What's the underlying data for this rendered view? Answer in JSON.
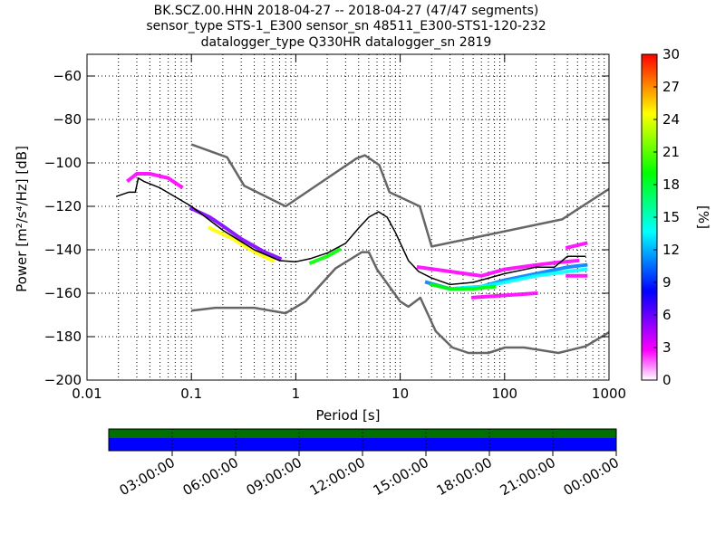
{
  "chart_data": {
    "type": "heatmap",
    "title_lines": [
      "BK.SCZ.00.HHN   2018-04-27 -- 2018-04-27  (47/47 segments)",
      "sensor_type STS-1_E300 sensor_sn 48511_E300-STS1-120-232",
      "datalogger_type Q330HR datalogger_sn 2819"
    ],
    "xlabel": "Period [s]",
    "ylabel": "Power [m²/s⁴/Hz] [dB]",
    "x_scale": "log",
    "xlim": [
      0.01,
      1000
    ],
    "ylim": [
      -200,
      -50
    ],
    "x_ticks": [
      {
        "value": 0.01,
        "label": "0.01"
      },
      {
        "value": 0.1,
        "label": "0.1"
      },
      {
        "value": 1,
        "label": "1"
      },
      {
        "value": 10,
        "label": "10"
      },
      {
        "value": 100,
        "label": "100"
      },
      {
        "value": 1000,
        "label": "1000"
      }
    ],
    "y_ticks": [
      {
        "value": -60,
        "label": "−60"
      },
      {
        "value": -80,
        "label": "−80"
      },
      {
        "value": -100,
        "label": "−100"
      },
      {
        "value": -120,
        "label": "−120"
      },
      {
        "value": -140,
        "label": "−140"
      },
      {
        "value": -160,
        "label": "−160"
      },
      {
        "value": -180,
        "label": "−180"
      },
      {
        "value": -200,
        "label": "−200"
      }
    ],
    "grid": true,
    "colorbar": {
      "label": "[%]",
      "min": 0,
      "max": 30,
      "ticks": [
        {
          "value": 0,
          "label": "0"
        },
        {
          "value": 3,
          "label": "3"
        },
        {
          "value": 6,
          "label": "6"
        },
        {
          "value": 9,
          "label": "9"
        },
        {
          "value": 12,
          "label": "12"
        },
        {
          "value": 15,
          "label": "15"
        },
        {
          "value": 18,
          "label": "18"
        },
        {
          "value": 21,
          "label": "21"
        },
        {
          "value": 24,
          "label": "24"
        },
        {
          "value": 27,
          "label": "27"
        },
        {
          "value": 30,
          "label": "30"
        }
      ],
      "colors": [
        "#ffffff",
        "#ff00ff",
        "#8000ff",
        "#0000ff",
        "#0080ff",
        "#00ffff",
        "#00ff80",
        "#00ff00",
        "#80ff00",
        "#ffff00",
        "#ff8000",
        "#ff0000"
      ]
    },
    "series": [
      {
        "role": "high-noise-model",
        "color": "#666666",
        "points": [
          [
            0.1,
            -91.5
          ],
          [
            0.22,
            -97.4
          ],
          [
            0.32,
            -110.5
          ],
          [
            0.8,
            -120
          ],
          [
            3.8,
            -98
          ],
          [
            4.6,
            -96.5
          ],
          [
            6.3,
            -101
          ],
          [
            7.9,
            -113.5
          ],
          [
            15.4,
            -120
          ],
          [
            20,
            -138.5
          ],
          [
            354.8,
            -126
          ],
          [
            1000,
            -112
          ]
        ]
      },
      {
        "role": "low-noise-model",
        "color": "#666666",
        "points": [
          [
            0.1,
            -168
          ],
          [
            0.17,
            -166.7
          ],
          [
            0.4,
            -166.7
          ],
          [
            0.8,
            -169.2
          ],
          [
            1.24,
            -163.7
          ],
          [
            2.4,
            -148.6
          ],
          [
            4.3,
            -141.1
          ],
          [
            5,
            -141.1
          ],
          [
            6,
            -149
          ],
          [
            10,
            -163.8
          ],
          [
            12,
            -166.2
          ],
          [
            15.6,
            -162.1
          ],
          [
            21.9,
            -177.5
          ],
          [
            31.6,
            -185
          ],
          [
            45,
            -187.5
          ],
          [
            70,
            -187.5
          ],
          [
            101,
            -185
          ],
          [
            154,
            -185
          ],
          [
            328,
            -187.5
          ],
          [
            600,
            -184.4
          ],
          [
            1000,
            -178
          ]
        ]
      },
      {
        "role": "mode-line",
        "color": "#000000",
        "points": [
          [
            0.019,
            -115.5
          ],
          [
            0.025,
            -113.5
          ],
          [
            0.029,
            -113.5
          ],
          [
            0.031,
            -107
          ],
          [
            0.035,
            -108.5
          ],
          [
            0.05,
            -111.5
          ],
          [
            0.1,
            -120
          ],
          [
            0.2,
            -131
          ],
          [
            0.4,
            -140
          ],
          [
            0.7,
            -145
          ],
          [
            1,
            -145.5
          ],
          [
            1.4,
            -144
          ],
          [
            2,
            -141.5
          ],
          [
            3,
            -137
          ],
          [
            4,
            -130
          ],
          [
            5,
            -125
          ],
          [
            6.2,
            -122.5
          ],
          [
            7.5,
            -125
          ],
          [
            9,
            -132
          ],
          [
            12,
            -145
          ],
          [
            15,
            -150
          ],
          [
            20,
            -153
          ],
          [
            30,
            -156
          ],
          [
            50,
            -155
          ],
          [
            100,
            -151
          ],
          [
            200,
            -148
          ],
          [
            300,
            -148
          ],
          [
            400,
            -143
          ],
          [
            600,
            -143
          ]
        ]
      }
    ],
    "density_bands": [
      {
        "color": "#ff00ff",
        "points": [
          [
            0.025,
            -108
          ],
          [
            0.03,
            -105
          ],
          [
            0.04,
            -105
          ],
          [
            0.06,
            -107
          ],
          [
            0.08,
            -111
          ]
        ]
      },
      {
        "color": "#8000ff",
        "points": [
          [
            0.1,
            -121
          ],
          [
            0.15,
            -125
          ],
          [
            0.2,
            -129
          ],
          [
            0.3,
            -135
          ],
          [
            0.5,
            -141
          ],
          [
            0.7,
            -144
          ]
        ]
      },
      {
        "color": "#ffff00",
        "points": [
          [
            0.15,
            -130
          ],
          [
            0.25,
            -135
          ],
          [
            0.4,
            -141
          ],
          [
            0.6,
            -145
          ]
        ]
      },
      {
        "color": "#00ff00",
        "points": [
          [
            1.4,
            -146
          ],
          [
            2,
            -143
          ],
          [
            2.6,
            -140
          ]
        ]
      },
      {
        "color": "#ff00ff",
        "points": [
          [
            15,
            -148
          ],
          [
            30,
            -150
          ],
          [
            60,
            -152
          ],
          [
            100,
            -149
          ],
          [
            200,
            -147
          ],
          [
            300,
            -146
          ],
          [
            500,
            -145
          ]
        ]
      },
      {
        "color": "#0080ff",
        "points": [
          [
            18,
            -155
          ],
          [
            30,
            -158
          ],
          [
            60,
            -157
          ],
          [
            100,
            -154
          ],
          [
            200,
            -151
          ],
          [
            400,
            -148
          ],
          [
            600,
            -147
          ]
        ]
      },
      {
        "color": "#00ffff",
        "points": [
          [
            30,
            -158
          ],
          [
            60,
            -157
          ],
          [
            100,
            -155
          ],
          [
            200,
            -152
          ],
          [
            400,
            -150
          ],
          [
            600,
            -149
          ]
        ]
      },
      {
        "color": "#00ff00",
        "points": [
          [
            20,
            -156
          ],
          [
            30,
            -158
          ],
          [
            50,
            -158
          ],
          [
            80,
            -157
          ]
        ]
      },
      {
        "color": "#ff00ff",
        "points": [
          [
            50,
            -162
          ],
          [
            100,
            -161
          ],
          [
            200,
            -160
          ]
        ]
      },
      {
        "color": "#ff00ff",
        "points": [
          [
            400,
            -139
          ],
          [
            600,
            -137
          ]
        ]
      },
      {
        "color": "#ff00ff",
        "points": [
          [
            400,
            -152
          ],
          [
            600,
            -152
          ]
        ]
      }
    ],
    "time_axis": {
      "labels": [
        "03:00:00",
        "06:00:00",
        "09:00:00",
        "12:00:00",
        "15:00:00",
        "18:00:00",
        "21:00:00",
        "00:00:00"
      ],
      "bar_colors": {
        "top": "#007000",
        "bottom": "#0000ff"
      }
    }
  }
}
